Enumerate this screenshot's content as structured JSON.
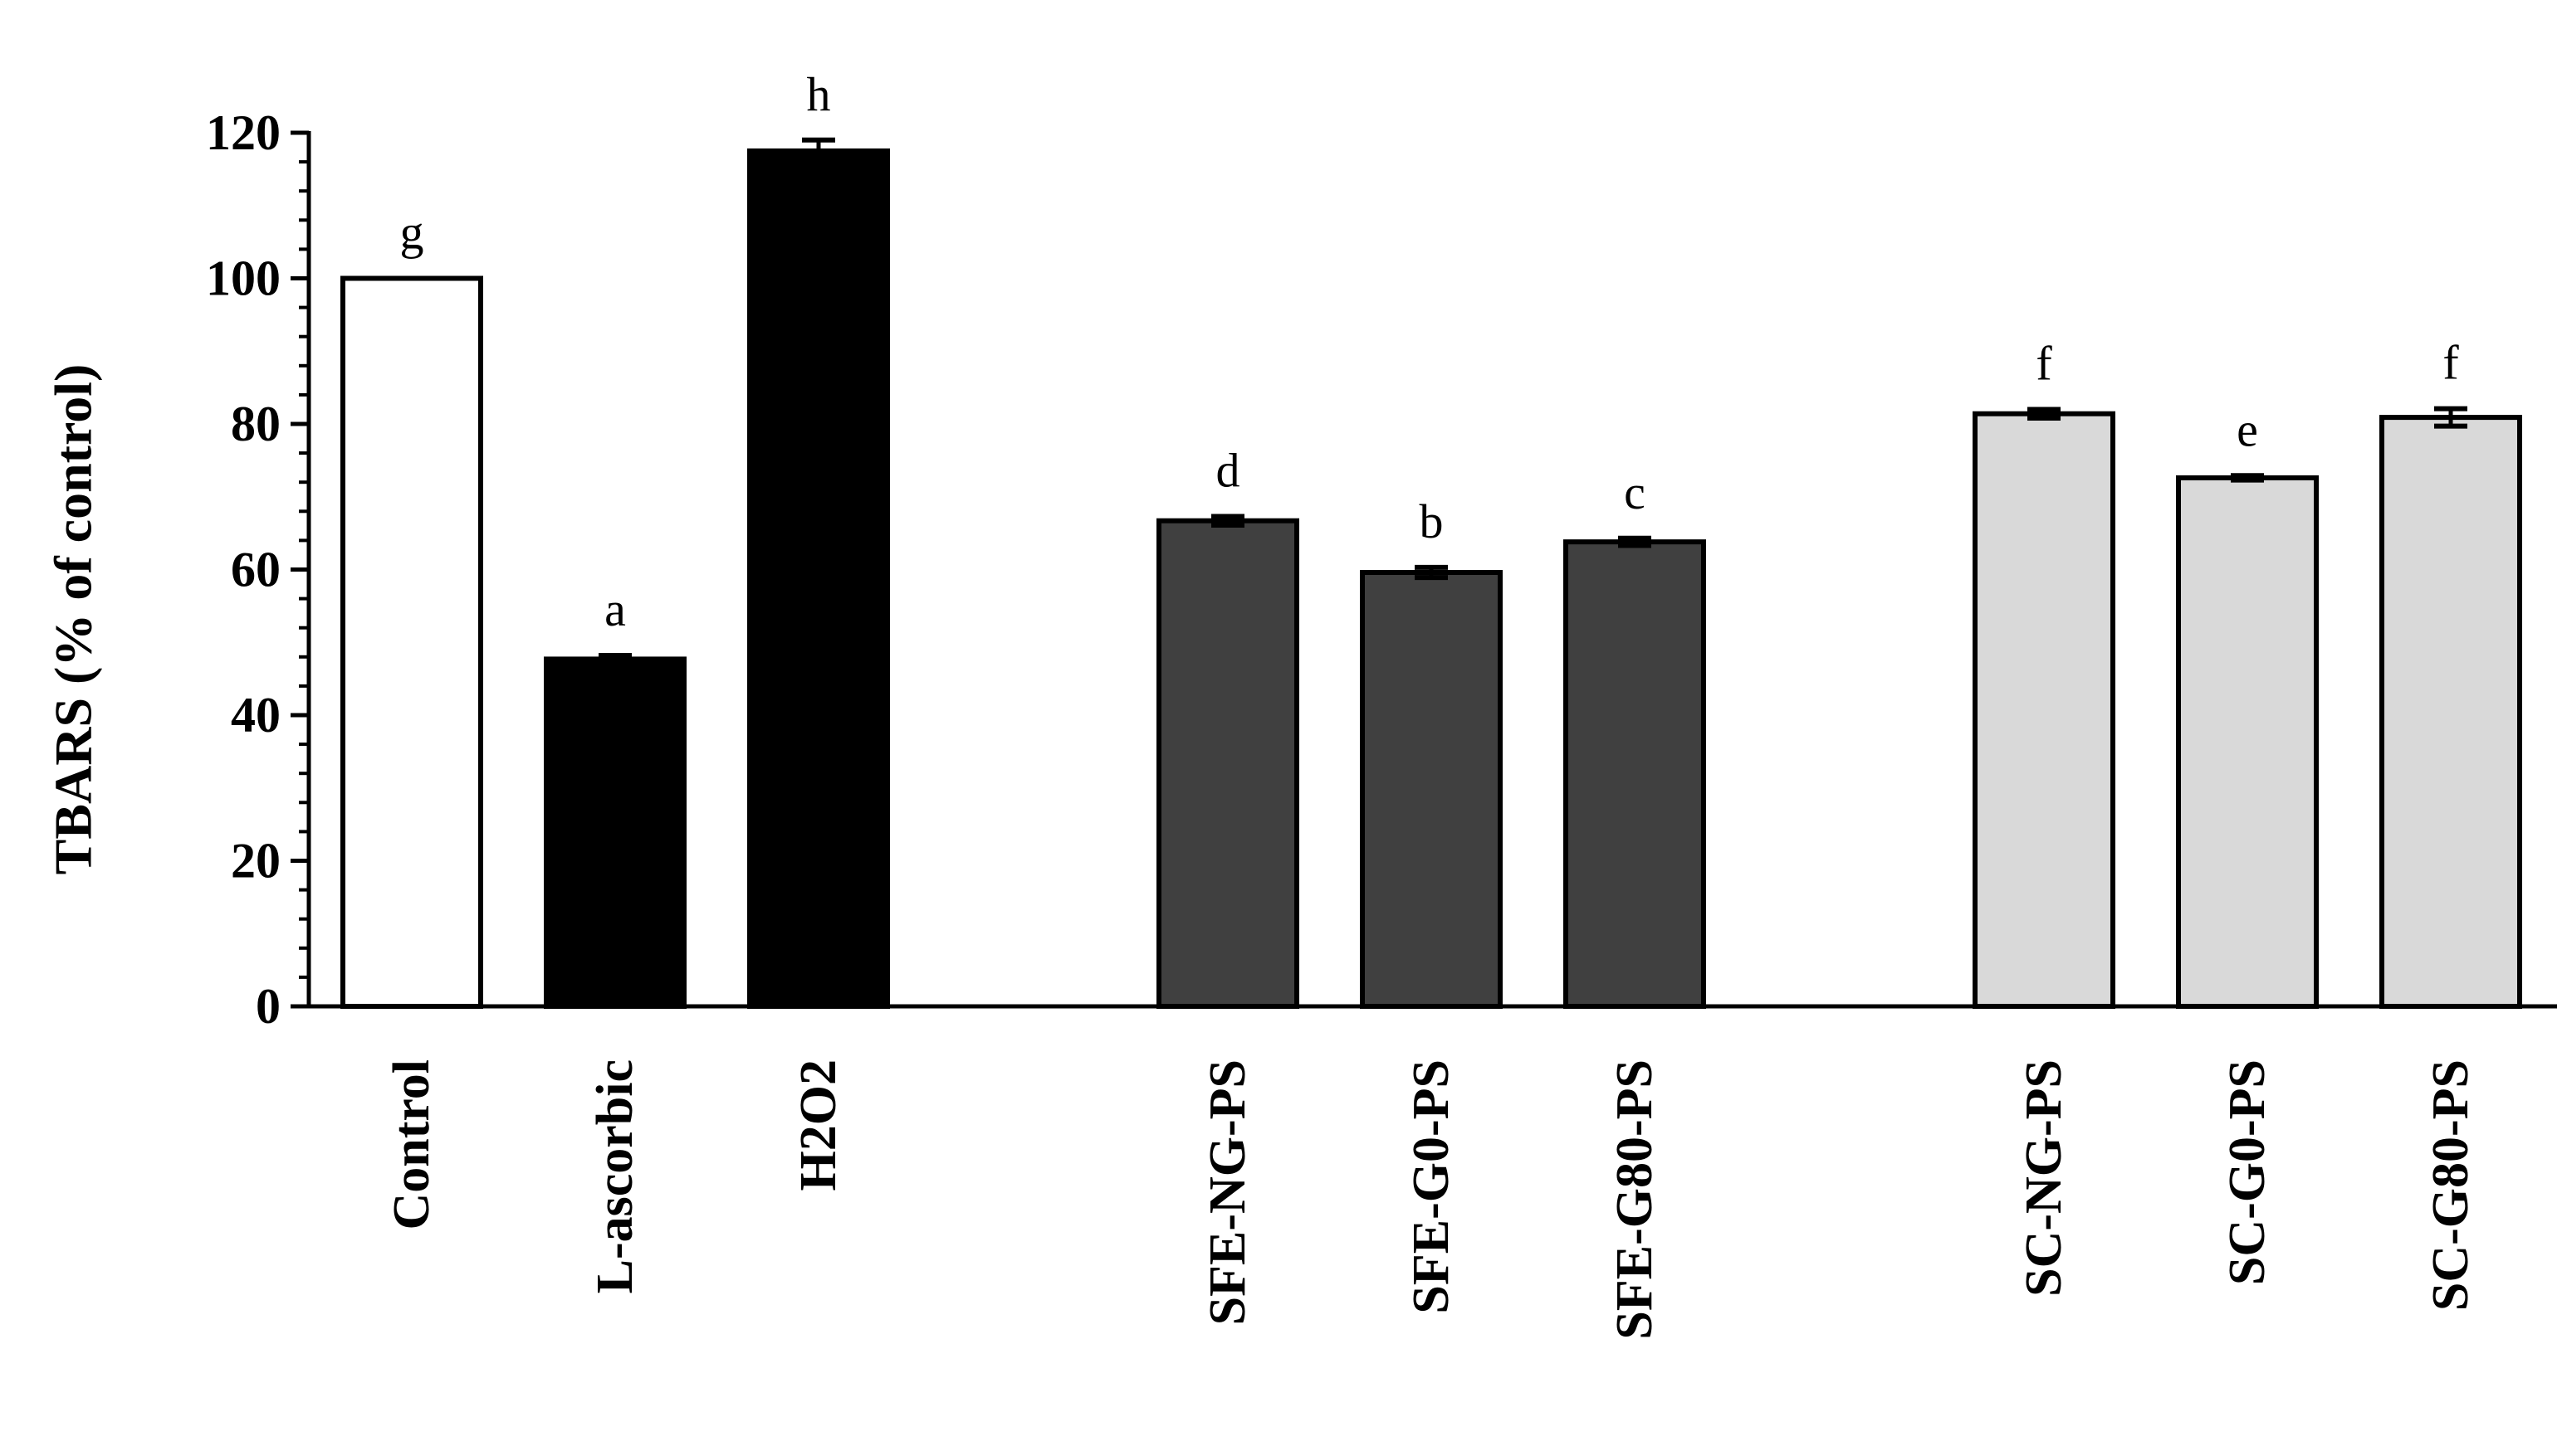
{
  "chart_data": {
    "type": "bar",
    "title": "",
    "xlabel": "",
    "ylabel": "TBARS (% of control)",
    "ylim": [
      0,
      120
    ],
    "yticks": [
      0,
      20,
      40,
      60,
      80,
      100,
      120
    ],
    "grid": false,
    "legend": "none",
    "categories": [
      "Control",
      "L-ascorbic",
      "H2O2",
      "SFE-NG-PS",
      "SFE-G0-PS",
      "SFE-G80-PS",
      "SC-NG-PS",
      "SC-G0-PS",
      "SC-G80-PS"
    ],
    "groups": [
      {
        "members": [
          0,
          1,
          2
        ]
      },
      {
        "members": [
          3,
          4,
          5
        ]
      },
      {
        "members": [
          6,
          7,
          8
        ]
      }
    ],
    "values": [
      100,
      47.7,
      117.5,
      66.7,
      59.6,
      63.8,
      81.4,
      72.6,
      80.9
    ],
    "errors": [
      0,
      0.5,
      1.5,
      0.6,
      0.7,
      0.5,
      0.6,
      0.3,
      1.2
    ],
    "significance_letters": [
      "g",
      "a",
      "h",
      "d",
      "b",
      "c",
      "f",
      "e",
      "f"
    ],
    "bar_colors": [
      "#ffffff",
      "#000000",
      "#000000",
      "#404040",
      "#404040",
      "#404040",
      "#d9d9d9",
      "#d9d9d9",
      "#d9d9d9"
    ]
  }
}
